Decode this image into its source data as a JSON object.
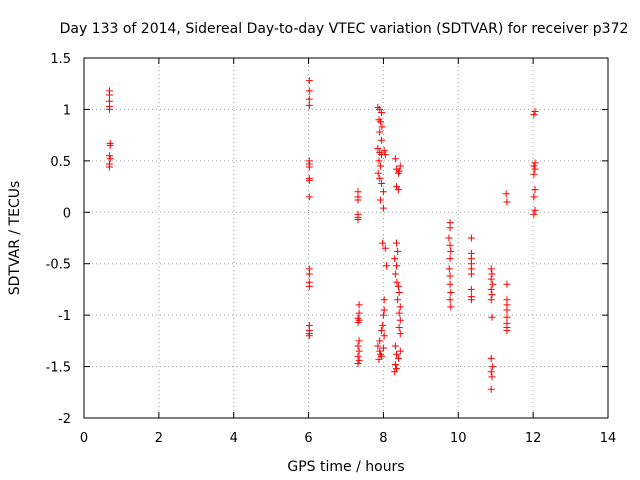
{
  "chart_data": {
    "type": "scatter",
    "title": "Day 133 of 2014, Sidereal Day-to-day VTEC variation (SDTVAR) for receiver p372",
    "xlabel": "GPS time / hours",
    "ylabel": "SDTVAR / TECUs",
    "xlim": [
      0,
      14
    ],
    "ylim": [
      -2,
      1.5
    ],
    "xticks": [
      0,
      2,
      4,
      6,
      8,
      10,
      12,
      14
    ],
    "yticks": [
      -2,
      -1.5,
      -1,
      -0.5,
      0,
      0.5,
      1,
      1.5
    ],
    "xtick_labels": [
      "0",
      "2",
      "4",
      "6",
      "8",
      "10",
      "12",
      "14"
    ],
    "ytick_labels": [
      "-2",
      "-1.5",
      "-1",
      "-0.5",
      "0",
      "0.5",
      "1",
      "1.5"
    ],
    "grid": true,
    "marker": "+",
    "color": "#ff0000",
    "series": [
      {
        "name": "SDTVAR",
        "points": [
          [
            0.68,
            1.18
          ],
          [
            0.68,
            1.14
          ],
          [
            0.68,
            1.08
          ],
          [
            0.68,
            1.03
          ],
          [
            0.68,
            1.0
          ],
          [
            0.7,
            0.67
          ],
          [
            0.7,
            0.65
          ],
          [
            0.68,
            0.55
          ],
          [
            0.7,
            0.52
          ],
          [
            0.68,
            0.47
          ],
          [
            0.68,
            0.44
          ],
          [
            6.02,
            1.28
          ],
          [
            6.02,
            1.18
          ],
          [
            6.02,
            1.1
          ],
          [
            6.02,
            1.04
          ],
          [
            6.02,
            0.5
          ],
          [
            6.02,
            0.47
          ],
          [
            6.02,
            0.44
          ],
          [
            6.02,
            0.33
          ],
          [
            6.02,
            0.31
          ],
          [
            6.02,
            0.15
          ],
          [
            6.02,
            -0.55
          ],
          [
            6.02,
            -0.6
          ],
          [
            6.02,
            -0.68
          ],
          [
            6.02,
            -0.72
          ],
          [
            6.02,
            -1.1
          ],
          [
            6.02,
            -1.15
          ],
          [
            6.02,
            -1.18
          ],
          [
            6.02,
            -1.2
          ],
          [
            7.32,
            0.2
          ],
          [
            7.32,
            0.15
          ],
          [
            7.32,
            0.12
          ],
          [
            7.32,
            -0.02
          ],
          [
            7.32,
            -0.05
          ],
          [
            7.32,
            -0.07
          ],
          [
            7.35,
            -0.9
          ],
          [
            7.35,
            -0.98
          ],
          [
            7.32,
            -1.03
          ],
          [
            7.35,
            -1.05
          ],
          [
            7.32,
            -1.07
          ],
          [
            7.35,
            -1.25
          ],
          [
            7.32,
            -1.3
          ],
          [
            7.35,
            -1.35
          ],
          [
            7.32,
            -1.4
          ],
          [
            7.35,
            -1.44
          ],
          [
            7.32,
            -1.47
          ],
          [
            7.85,
            1.02
          ],
          [
            7.9,
            1.0
          ],
          [
            7.95,
            0.97
          ],
          [
            7.88,
            0.9
          ],
          [
            7.92,
            0.88
          ],
          [
            7.96,
            0.83
          ],
          [
            7.9,
            0.78
          ],
          [
            7.95,
            0.7
          ],
          [
            7.85,
            0.62
          ],
          [
            7.9,
            0.58
          ],
          [
            7.95,
            0.56
          ],
          [
            8.02,
            0.6
          ],
          [
            8.05,
            0.56
          ],
          [
            7.88,
            0.5
          ],
          [
            7.92,
            0.45
          ],
          [
            7.86,
            0.38
          ],
          [
            7.9,
            0.33
          ],
          [
            7.95,
            0.28
          ],
          [
            8.0,
            0.2
          ],
          [
            7.92,
            0.12
          ],
          [
            8.0,
            0.04
          ],
          [
            7.98,
            -0.3
          ],
          [
            8.05,
            -0.35
          ],
          [
            8.08,
            -0.52
          ],
          [
            8.02,
            -0.85
          ],
          [
            8.02,
            -0.95
          ],
          [
            8.0,
            -1.0
          ],
          [
            7.98,
            -1.1
          ],
          [
            7.95,
            -1.15
          ],
          [
            7.9,
            -1.25
          ],
          [
            7.85,
            -1.3
          ],
          [
            7.9,
            -1.35
          ],
          [
            7.95,
            -1.4
          ],
          [
            7.88,
            -1.43
          ],
          [
            7.92,
            -1.38
          ],
          [
            8.0,
            -1.32
          ],
          [
            8.02,
            -1.2
          ],
          [
            8.32,
            0.52
          ],
          [
            8.35,
            0.42
          ],
          [
            8.4,
            0.38
          ],
          [
            8.45,
            0.45
          ],
          [
            8.42,
            0.4
          ],
          [
            8.35,
            0.25
          ],
          [
            8.4,
            0.22
          ],
          [
            8.35,
            -0.3
          ],
          [
            8.38,
            -0.38
          ],
          [
            8.3,
            -0.45
          ],
          [
            8.35,
            -0.52
          ],
          [
            8.32,
            -0.6
          ],
          [
            8.36,
            -0.68
          ],
          [
            8.4,
            -0.72
          ],
          [
            8.42,
            -0.78
          ],
          [
            8.38,
            -0.85
          ],
          [
            8.45,
            -0.92
          ],
          [
            8.42,
            -0.98
          ],
          [
            8.45,
            -1.05
          ],
          [
            8.42,
            -1.12
          ],
          [
            8.45,
            -1.18
          ],
          [
            8.32,
            -1.3
          ],
          [
            8.35,
            -1.38
          ],
          [
            8.4,
            -1.42
          ],
          [
            8.32,
            -1.48
          ],
          [
            8.35,
            -1.52
          ],
          [
            8.3,
            -1.55
          ],
          [
            8.45,
            -1.35
          ],
          [
            9.78,
            -0.1
          ],
          [
            9.78,
            -0.15
          ],
          [
            9.75,
            -0.25
          ],
          [
            9.78,
            -0.32
          ],
          [
            9.8,
            -0.38
          ],
          [
            9.78,
            -0.45
          ],
          [
            9.76,
            -0.55
          ],
          [
            9.78,
            -0.62
          ],
          [
            9.78,
            -0.7
          ],
          [
            9.8,
            -0.78
          ],
          [
            9.78,
            -0.85
          ],
          [
            9.8,
            -0.92
          ],
          [
            10.35,
            -0.25
          ],
          [
            10.35,
            -0.4
          ],
          [
            10.35,
            -0.45
          ],
          [
            10.35,
            -0.5
          ],
          [
            10.35,
            -0.55
          ],
          [
            10.35,
            -0.6
          ],
          [
            10.35,
            -0.75
          ],
          [
            10.35,
            -0.82
          ],
          [
            10.35,
            -0.85
          ],
          [
            10.88,
            -0.55
          ],
          [
            10.9,
            -0.6
          ],
          [
            10.88,
            -0.65
          ],
          [
            10.92,
            -0.7
          ],
          [
            10.88,
            -0.75
          ],
          [
            10.9,
            -0.8
          ],
          [
            10.88,
            -0.85
          ],
          [
            10.9,
            -1.02
          ],
          [
            10.88,
            -1.42
          ],
          [
            10.92,
            -1.5
          ],
          [
            10.88,
            -1.55
          ],
          [
            10.9,
            -1.6
          ],
          [
            10.88,
            -1.72
          ],
          [
            11.28,
            0.18
          ],
          [
            11.3,
            0.1
          ],
          [
            11.3,
            -0.7
          ],
          [
            11.3,
            -0.85
          ],
          [
            11.3,
            -0.9
          ],
          [
            11.3,
            -0.95
          ],
          [
            11.3,
            -1.02
          ],
          [
            11.3,
            -1.08
          ],
          [
            11.3,
            -1.12
          ],
          [
            11.3,
            -1.15
          ],
          [
            12.05,
            0.98
          ],
          [
            12.02,
            0.95
          ],
          [
            12.05,
            0.48
          ],
          [
            12.02,
            0.45
          ],
          [
            12.05,
            0.42
          ],
          [
            12.02,
            0.37
          ],
          [
            12.05,
            0.22
          ],
          [
            12.02,
            0.15
          ],
          [
            12.05,
            0.02
          ],
          [
            12.02,
            -0.02
          ]
        ]
      }
    ]
  }
}
